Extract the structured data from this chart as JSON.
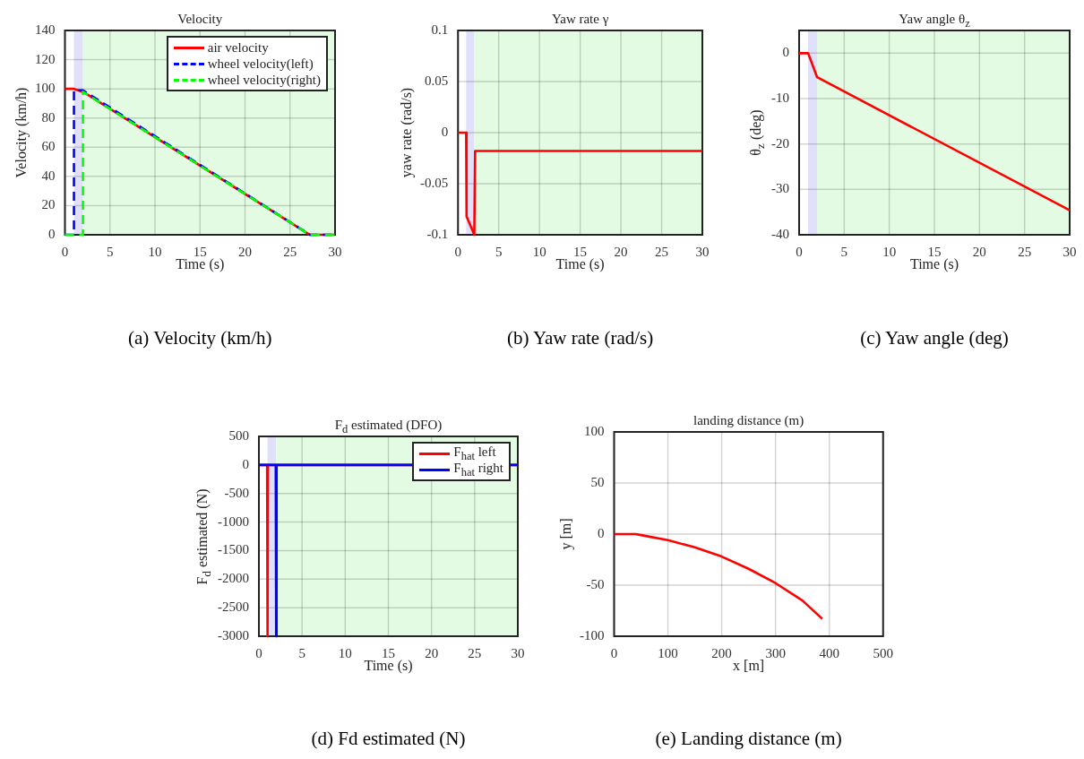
{
  "chart_data": [
    {
      "type": "line",
      "title": "Velocity",
      "xlabel": "Time (s)",
      "ylabel": "Velocity (km/h)",
      "annotations": [
        "(a) Velocity (km/h)"
      ],
      "xlim": [
        0,
        30
      ],
      "xticks": [
        0,
        5,
        10,
        15,
        20,
        25,
        30
      ],
      "ylim": [
        0,
        140
      ],
      "yticks": [
        0,
        20,
        40,
        60,
        80,
        100,
        120,
        140
      ],
      "grid": true,
      "legend": "top right",
      "bands": [
        {
          "axis": "x",
          "from": 1,
          "to": 2,
          "color": "#e0e0fa"
        },
        {
          "axis": "x",
          "from": 2,
          "to": 30,
          "color": "#e3fbe3"
        }
      ],
      "series": [
        {
          "name": "air velocity",
          "color": "#ff0000",
          "x": [
            0,
            1,
            2,
            27.2,
            30
          ],
          "values": [
            100,
            100,
            98,
            0,
            0
          ]
        },
        {
          "name": "wheel velocity(left)",
          "color": "#0000ff",
          "line_style": "dashed",
          "x": [
            0,
            1,
            1,
            2,
            27.2,
            30
          ],
          "values": [
            0,
            0,
            99,
            99,
            0,
            0
          ]
        },
        {
          "name": "wheel velocity(right)",
          "color": "#00ff00",
          "line_style": "dashed",
          "x": [
            0,
            2,
            2,
            27.2,
            30
          ],
          "values": [
            0,
            0,
            98,
            0,
            0
          ]
        }
      ]
    },
    {
      "type": "line",
      "title": "Yaw rate γ",
      "xlabel": "Time (s)",
      "ylabel": "yaw rate (rad/s)",
      "annotations": [
        "(b) Yaw rate (rad/s)"
      ],
      "xlim": [
        0,
        30
      ],
      "xticks": [
        0,
        5,
        10,
        15,
        20,
        25,
        30
      ],
      "ylim": [
        -0.1,
        0.1
      ],
      "yticks": [
        -0.1,
        -0.05,
        0,
        0.05,
        0.1
      ],
      "grid": true,
      "bands": [
        {
          "axis": "x",
          "from": 1,
          "to": 2,
          "color": "#e0e0fa"
        },
        {
          "axis": "x",
          "from": 2,
          "to": 30,
          "color": "#e3fbe3"
        }
      ],
      "series": [
        {
          "color": "#ff0000",
          "x": [
            0,
            1,
            1.05,
            2,
            2.1,
            30
          ],
          "values": [
            0,
            0,
            -0.082,
            -0.1,
            -0.018,
            -0.018
          ]
        }
      ]
    },
    {
      "type": "line",
      "title": "Yaw angle θ$_{z}$",
      "xlabel": "Time (s)",
      "ylabel": "θ$_{z}$ (deg)",
      "annotations": [
        "(c) Yaw angle (deg)"
      ],
      "xlim": [
        0,
        30
      ],
      "xticks": [
        0,
        5,
        10,
        15,
        20,
        25,
        30
      ],
      "ylim": [
        -40,
        5
      ],
      "yticks": [
        -40,
        -30,
        -20,
        -10,
        0
      ],
      "grid": true,
      "bands": [
        {
          "axis": "x",
          "from": 1,
          "to": 2,
          "color": "#e0e0fa"
        },
        {
          "axis": "x",
          "from": 2,
          "to": 30,
          "color": "#e3fbe3"
        }
      ],
      "series": [
        {
          "color": "#ff0000",
          "x": [
            0,
            1,
            2,
            30
          ],
          "values": [
            0,
            0,
            -5.3,
            -34.6
          ]
        }
      ]
    },
    {
      "type": "line",
      "title": "F$_{d}$ estimated (DFO)",
      "xlabel": "Time (s)",
      "ylabel": "F$_{d}$ estimated (N)",
      "annotations": [
        "(d) Fd estimated (N)"
      ],
      "xlim": [
        0,
        30
      ],
      "xticks": [
        0,
        5,
        10,
        15,
        20,
        25,
        30
      ],
      "ylim": [
        -3000,
        500
      ],
      "yticks": [
        -3000,
        -2500,
        -2000,
        -1500,
        -1000,
        -500,
        0,
        500
      ],
      "grid": true,
      "legend": "top right",
      "bands": [
        {
          "axis": "x",
          "from": 1,
          "to": 2,
          "color": "#e0e0fa"
        },
        {
          "axis": "x",
          "from": 2,
          "to": 30,
          "color": "#e3fbe3"
        }
      ],
      "series": [
        {
          "name": "F$_{hat}$ left",
          "color": "#ff0000",
          "x": [
            0,
            0.95,
            1,
            1.05,
            30
          ],
          "values": [
            0,
            0,
            -3000,
            0,
            0
          ]
        },
        {
          "name": "F$_{hat}$ right",
          "color": "#0000ff",
          "x": [
            0,
            1.95,
            2,
            2.05,
            30
          ],
          "values": [
            0,
            0,
            -3000,
            0,
            0
          ]
        }
      ]
    },
    {
      "type": "line",
      "title": "landing distance (m)",
      "xlabel": "x [m]",
      "ylabel": "y [m]",
      "annotations": [
        "(e) Landing distance (m)"
      ],
      "xlim": [
        0,
        500
      ],
      "xticks": [
        0,
        100,
        200,
        300,
        400,
        500
      ],
      "ylim": [
        -100,
        100
      ],
      "yticks": [
        -100,
        -50,
        0,
        50,
        100
      ],
      "grid": true,
      "series": [
        {
          "color": "#ff0000",
          "x": [
            0,
            40,
            50,
            100,
            150,
            200,
            250,
            300,
            350,
            387
          ],
          "values": [
            0,
            0,
            -1,
            -6,
            -13,
            -22,
            -34,
            -48,
            -65,
            -83
          ]
        }
      ]
    }
  ]
}
